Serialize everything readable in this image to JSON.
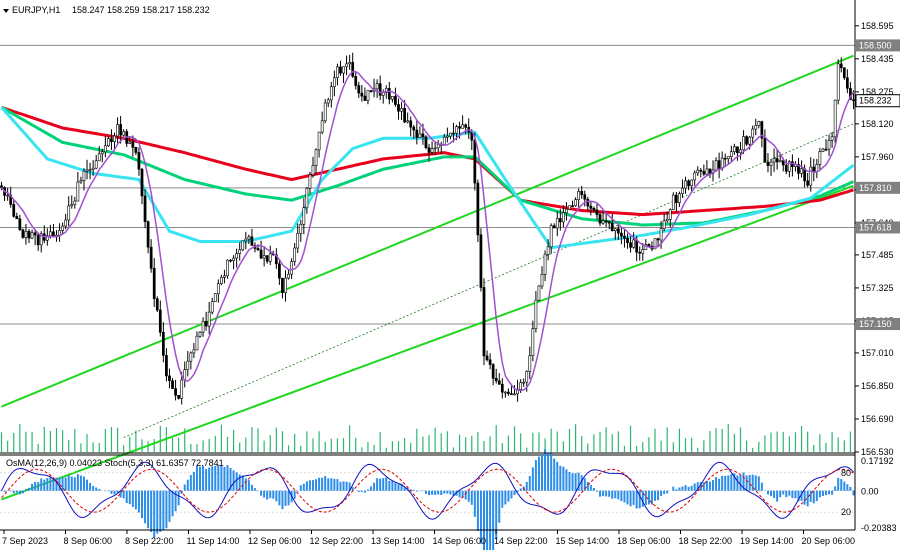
{
  "header": {
    "symbol": "EURJPY,H1",
    "ohlc": "158.247 158.259 158.217 158.232",
    "indicator_label": "OsMA(12,26,9) 0.04023  Stoch(5,3,3) 61.6357 72.7841"
  },
  "colors": {
    "background": "#ffffff",
    "candle": "#000000",
    "ma_red": "#e8001c",
    "ma_green": "#00d27a",
    "ma_cyan": "#38e4f0",
    "ma_purple": "#a050d0",
    "channel": "#1ed71e",
    "level_line": "#8c8c8c",
    "osma_bar": "#2b8de8",
    "stoch_main": "#1010c0",
    "stoch_signal": "#e00000"
  },
  "chart_data": [
    {
      "type": "candlestick",
      "title": "EURJPY,H1",
      "ylim": [
        156.53,
        158.72
      ],
      "y_ticks": [
        "158.595",
        "158.435",
        "158.275",
        "158.120",
        "157.960",
        "157.800",
        "157.640",
        "157.485",
        "157.325",
        "157.165",
        "157.010",
        "156.850",
        "156.690",
        "156.530"
      ],
      "price_levels": [
        {
          "label": "158.500",
          "value": 158.5
        },
        {
          "label": "157.810",
          "value": 157.81
        },
        {
          "label": "157.618",
          "value": 157.618
        },
        {
          "label": "157.150",
          "value": 157.15
        }
      ],
      "current_price": {
        "label": "158.232",
        "value": 158.232
      },
      "x_labels": [
        "7 Sep 2023",
        "8 Sep 06:00",
        "8 Sep 22:00",
        "11 Sep 14:00",
        "12 Sep 06:00",
        "12 Sep 22:00",
        "13 Sep 14:00",
        "14 Sep 06:00",
        "14 Sep 22:00",
        "15 Sep 14:00",
        "18 Sep 06:00",
        "18 Sep 22:00",
        "19 Sep 14:00",
        "20 Sep 06:00"
      ],
      "price_path": [
        [
          0,
          157.82
        ],
        [
          6,
          157.6
        ],
        [
          12,
          157.55
        ],
        [
          20,
          157.62
        ],
        [
          26,
          157.85
        ],
        [
          32,
          157.95
        ],
        [
          38,
          158.1
        ],
        [
          44,
          158.0
        ],
        [
          50,
          157.3
        ],
        [
          54,
          156.9
        ],
        [
          58,
          156.8
        ],
        [
          62,
          157.0
        ],
        [
          68,
          157.2
        ],
        [
          74,
          157.45
        ],
        [
          80,
          157.58
        ],
        [
          86,
          157.48
        ],
        [
          90,
          157.45
        ],
        [
          92,
          157.3
        ],
        [
          96,
          157.5
        ],
        [
          100,
          157.78
        ],
        [
          104,
          158.1
        ],
        [
          110,
          158.38
        ],
        [
          114,
          158.42
        ],
        [
          118,
          158.25
        ],
        [
          122,
          158.3
        ],
        [
          128,
          158.25
        ],
        [
          134,
          158.1
        ],
        [
          140,
          158.0
        ],
        [
          146,
          158.05
        ],
        [
          150,
          158.1
        ],
        [
          154,
          158.05
        ],
        [
          156,
          157.6
        ],
        [
          158,
          157.0
        ],
        [
          162,
          156.85
        ],
        [
          168,
          156.8
        ],
        [
          172,
          156.9
        ],
        [
          176,
          157.35
        ],
        [
          180,
          157.6
        ],
        [
          186,
          157.7
        ],
        [
          190,
          157.8
        ],
        [
          196,
          157.65
        ],
        [
          202,
          157.62
        ],
        [
          206,
          157.55
        ],
        [
          210,
          157.5
        ],
        [
          214,
          157.55
        ],
        [
          220,
          157.75
        ],
        [
          226,
          157.85
        ],
        [
          232,
          157.9
        ],
        [
          238,
          157.95
        ],
        [
          244,
          158.05
        ],
        [
          248,
          158.15
        ],
        [
          250,
          157.95
        ],
        [
          256,
          157.92
        ],
        [
          260,
          157.9
        ],
        [
          264,
          157.85
        ],
        [
          268,
          157.98
        ],
        [
          272,
          158.05
        ],
        [
          274,
          158.4
        ],
        [
          277,
          158.3
        ],
        [
          279,
          158.23
        ]
      ],
      "moving_averages": [
        {
          "color_key": "ma_red",
          "points": [
            [
              0,
              158.2
            ],
            [
              20,
              158.1
            ],
            [
              40,
              158.05
            ],
            [
              60,
              157.98
            ],
            [
              80,
              157.9
            ],
            [
              95,
              157.85
            ],
            [
              110,
              157.9
            ],
            [
              125,
              157.95
            ],
            [
              145,
              157.98
            ],
            [
              155,
              157.95
            ],
            [
              170,
              157.75
            ],
            [
              190,
              157.7
            ],
            [
              210,
              157.68
            ],
            [
              230,
              157.7
            ],
            [
              250,
              157.72
            ],
            [
              268,
              157.75
            ],
            [
              279,
              157.8
            ]
          ]
        },
        {
          "color_key": "ma_green",
          "points": [
            [
              0,
              158.2
            ],
            [
              20,
              158.03
            ],
            [
              40,
              157.97
            ],
            [
              60,
              157.85
            ],
            [
              80,
              157.78
            ],
            [
              95,
              157.75
            ],
            [
              110,
              157.82
            ],
            [
              125,
              157.9
            ],
            [
              145,
              157.96
            ],
            [
              155,
              157.96
            ],
            [
              170,
              157.75
            ],
            [
              190,
              157.66
            ],
            [
              210,
              157.63
            ],
            [
              230,
              157.64
            ],
            [
              250,
              157.7
            ],
            [
              268,
              157.77
            ],
            [
              279,
              157.84
            ]
          ]
        },
        {
          "color_key": "ma_cyan",
          "points": [
            [
              0,
              158.2
            ],
            [
              15,
              157.95
            ],
            [
              30,
              157.88
            ],
            [
              45,
              157.85
            ],
            [
              55,
              157.6
            ],
            [
              65,
              157.55
            ],
            [
              80,
              157.55
            ],
            [
              95,
              157.6
            ],
            [
              105,
              157.85
            ],
            [
              115,
              158.0
            ],
            [
              125,
              158.05
            ],
            [
              140,
              158.05
            ],
            [
              155,
              158.08
            ],
            [
              165,
              157.85
            ],
            [
              180,
              157.52
            ],
            [
              195,
              157.55
            ],
            [
              210,
              157.58
            ],
            [
              225,
              157.62
            ],
            [
              245,
              157.68
            ],
            [
              265,
              157.76
            ],
            [
              279,
              157.92
            ]
          ]
        }
      ],
      "channel_lines": [
        {
          "from": [
            0,
            156.75
          ],
          "to": [
            279,
            158.45
          ]
        },
        {
          "from": [
            0,
            156.3
          ],
          "to": [
            279,
            157.82
          ]
        },
        {
          "from": [
            40,
            156.6
          ],
          "to": [
            279,
            158.12
          ],
          "style": "thin"
        }
      ]
    },
    {
      "type": "oscillator",
      "title": "OsMA(12,26,9) 0.04023  Stoch(5,3,3) 61.6357 72.7841",
      "y_ticks_right": [
        "0.17192",
        "0.00",
        "-0.20383"
      ],
      "y_ticks_left": [
        "80",
        "20"
      ],
      "ylim": [
        -0.22,
        0.2
      ]
    }
  ]
}
